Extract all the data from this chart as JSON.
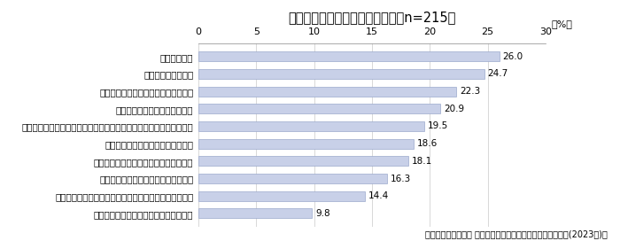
{
  "title": "直近５年で見直した普段の掃除（n=215）",
  "categories": [
    "見栄えの良い掃除アイテムに買い替えた",
    "ロボット掃除機が動きやすいようにレイアウトを変えた",
    "モノの再利用・リサイクルを増やした",
    "機能性の高い掃除アイテムに買い替えた",
    "掃除がしやすい家具や設備に変えた",
    "汚れが付きにくい設備に変えた（トイレ、風呂、レンジフードなど）",
    "汚れ予防のための対策を始めた",
    "機能性の高い掃除用家電に買い替えた",
    "掃除頻度を増やした",
    "収納を変えた"
  ],
  "values": [
    9.8,
    14.4,
    16.3,
    18.1,
    18.6,
    19.5,
    20.9,
    22.3,
    24.7,
    26.0
  ],
  "bar_color": "#c8d0e8",
  "bar_edge_color": "#9aa8cc",
  "xlim": [
    0,
    30
  ],
  "xticks": [
    0,
    5,
    10,
    15,
    20,
    25,
    30
  ],
  "footnote": "積水ハウス株式会社 住生活研究所「年始に向けた大掃除調査(2023年)」",
  "title_fontsize": 10.5,
  "label_fontsize": 7.5,
  "tick_fontsize": 8,
  "value_fontsize": 7.5,
  "footnote_fontsize": 7
}
